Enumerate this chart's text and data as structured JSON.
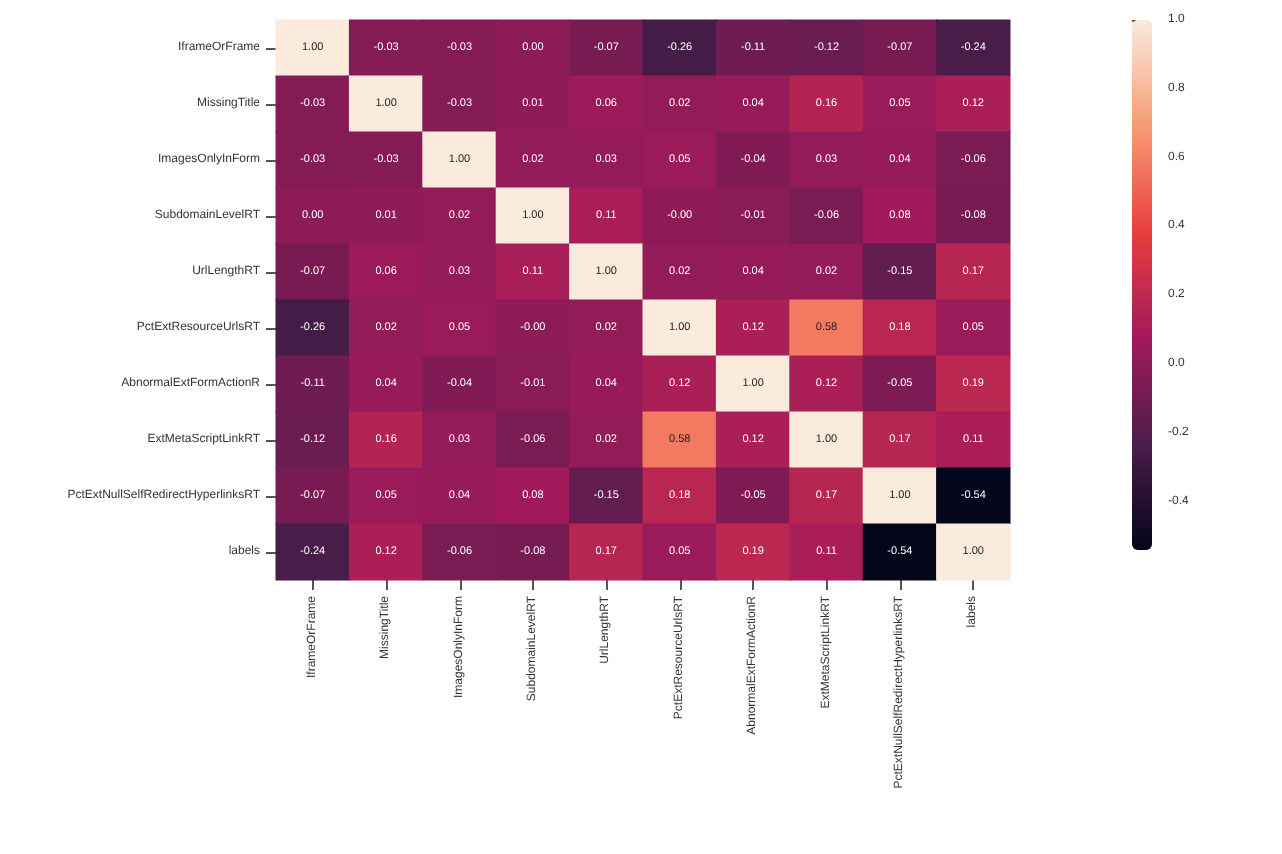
{
  "chart_data": {
    "type": "heatmap",
    "categories": [
      "IframeOrFrame",
      "MissingTitle",
      "ImagesOnlyInForm",
      "SubdomainLevelRT",
      "UrlLengthRT",
      "PctExtResourceUrlsRT",
      "AbnormalExtFormActionR",
      "ExtMetaScriptLinkRT",
      "PctExtNullSelfRedirectHyperlinksRT",
      "labels"
    ],
    "y_categories": [
      "IframeOrFrame",
      "MissingTitle",
      "ImagesOnlyInForm",
      "SubdomainLevelRT",
      "UrlLengthRT",
      "PctExtResourceUrlsRT",
      "AbnormalExtFormActionR",
      "ExtMetaScriptLinkRT",
      "PctExtNullSelfRedirectHyperlinksRT",
      "labels"
    ],
    "cells": [
      [
        1.0,
        -0.03,
        -0.03,
        0.0,
        -0.07,
        -0.26,
        -0.11,
        -0.12,
        -0.07,
        -0.24
      ],
      [
        -0.03,
        1.0,
        -0.03,
        0.01,
        0.06,
        0.02,
        0.04,
        0.16,
        0.05,
        0.12
      ],
      [
        -0.03,
        -0.03,
        1.0,
        0.02,
        0.03,
        0.05,
        -0.04,
        0.03,
        0.04,
        -0.06
      ],
      [
        0.0,
        0.01,
        0.02,
        1.0,
        0.11,
        0.0,
        -0.01,
        -0.06,
        0.08,
        -0.08
      ],
      [
        -0.07,
        0.06,
        0.03,
        0.11,
        1.0,
        0.02,
        0.04,
        0.02,
        -0.15,
        0.17
      ],
      [
        -0.26,
        0.02,
        0.05,
        0.0,
        0.02,
        1.0,
        0.12,
        0.58,
        0.18,
        0.05
      ],
      [
        -0.11,
        0.04,
        -0.04,
        -0.01,
        0.04,
        0.12,
        1.0,
        0.12,
        -0.05,
        0.19
      ],
      [
        -0.12,
        0.16,
        0.03,
        -0.06,
        0.02,
        0.58,
        0.12,
        1.0,
        0.17,
        0.11
      ],
      [
        -0.07,
        0.05,
        0.04,
        0.08,
        -0.15,
        0.18,
        -0.05,
        0.17,
        1.0,
        -0.54
      ],
      [
        -0.24,
        0.12,
        -0.06,
        -0.08,
        0.17,
        0.05,
        0.19,
        0.11,
        -0.54,
        1.0
      ]
    ],
    "cell_labels": [
      [
        "1.00",
        "-0.03",
        "-0.03",
        "0.00",
        "-0.07",
        "-0.26",
        "-0.11",
        "-0.12",
        "-0.07",
        "-0.24"
      ],
      [
        "-0.03",
        "1.00",
        "-0.03",
        "0.01",
        "0.06",
        "0.02",
        "0.04",
        "0.16",
        "0.05",
        "0.12"
      ],
      [
        "-0.03",
        "-0.03",
        "1.00",
        "0.02",
        "0.03",
        "0.05",
        "-0.04",
        "0.03",
        "0.04",
        "-0.06"
      ],
      [
        "0.00",
        "0.01",
        "0.02",
        "1.00",
        "0.11",
        "-0.00",
        "-0.01",
        "-0.06",
        "0.08",
        "-0.08"
      ],
      [
        "-0.07",
        "0.06",
        "0.03",
        "0.11",
        "1.00",
        "0.02",
        "0.04",
        "0.02",
        "-0.15",
        "0.17"
      ],
      [
        "-0.26",
        "0.02",
        "0.05",
        "-0.00",
        "0.02",
        "1.00",
        "0.12",
        "0.58",
        "0.18",
        "0.05"
      ],
      [
        "-0.11",
        "0.04",
        "-0.04",
        "-0.01",
        "0.04",
        "0.12",
        "1.00",
        "0.12",
        "-0.05",
        "0.19"
      ],
      [
        "-0.12",
        "0.16",
        "0.03",
        "-0.06",
        "0.02",
        "0.58",
        "0.12",
        "1.00",
        "0.17",
        "0.11"
      ],
      [
        "-0.07",
        "0.05",
        "0.04",
        "0.08",
        "-0.15",
        "0.18",
        "-0.05",
        "0.17",
        "1.00",
        "-0.54"
      ],
      [
        "-0.24",
        "0.12",
        "-0.06",
        "-0.08",
        "0.17",
        "0.05",
        "0.19",
        "0.11",
        "-0.54",
        "1.00"
      ]
    ],
    "clim": [
      -0.54,
      1.0
    ],
    "cticks": [
      -0.4,
      -0.2,
      {
        "value": 0,
        "label": "0.0"
      },
      0.2,
      0.4,
      0.6,
      0.8,
      {
        "value": 1,
        "label": "1.0"
      }
    ]
  }
}
